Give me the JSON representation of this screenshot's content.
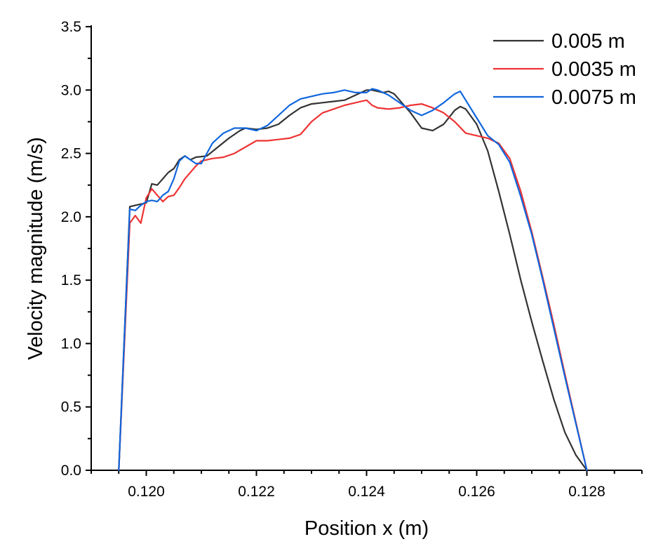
{
  "chart_data": {
    "type": "line",
    "title": "",
    "xlabel": "Position x (m)",
    "ylabel": "Velocity magnitude (m/s)",
    "xlim": [
      0.119,
      0.129
    ],
    "ylim": [
      0.0,
      3.5
    ],
    "x_ticks": [
      0.12,
      0.122,
      0.124,
      0.126,
      0.128
    ],
    "x_tick_labels": [
      "0.120",
      "0.122",
      "0.124",
      "0.126",
      "0.128"
    ],
    "y_ticks": [
      0.0,
      0.5,
      1.0,
      1.5,
      2.0,
      2.5,
      3.0,
      3.5
    ],
    "y_tick_labels": [
      "0.0",
      "0.5",
      "1.0",
      "1.5",
      "2.0",
      "2.5",
      "3.0",
      "3.5"
    ],
    "grid": false,
    "legend_position": "top-right",
    "series": [
      {
        "name": "0.005 m",
        "color": "#333333",
        "x": [
          0.1195,
          0.1197,
          0.1198,
          0.1199,
          0.12,
          0.1201,
          0.1202,
          0.1203,
          0.1204,
          0.1205,
          0.1206,
          0.1207,
          0.1208,
          0.1209,
          0.1211,
          0.1213,
          0.1215,
          0.1217,
          0.1218,
          0.122,
          0.1222,
          0.1224,
          0.1226,
          0.1228,
          0.123,
          0.1232,
          0.1234,
          0.1236,
          0.1238,
          0.124,
          0.1241,
          0.1242,
          0.1243,
          0.1244,
          0.1245,
          0.1246,
          0.1248,
          0.125,
          0.1252,
          0.1254,
          0.1256,
          0.1257,
          0.1258,
          0.126,
          0.1262,
          0.1264,
          0.1266,
          0.1268,
          0.127,
          0.1272,
          0.1274,
          0.1276,
          0.1278,
          0.128
        ],
        "values": [
          0.0,
          2.08,
          2.09,
          2.1,
          2.11,
          2.26,
          2.25,
          2.3,
          2.35,
          2.38,
          2.45,
          2.48,
          2.45,
          2.47,
          2.48,
          2.55,
          2.62,
          2.68,
          2.7,
          2.69,
          2.7,
          2.73,
          2.8,
          2.86,
          2.89,
          2.9,
          2.91,
          2.92,
          2.96,
          3.0,
          3.0,
          2.99,
          2.98,
          2.99,
          2.97,
          2.92,
          2.82,
          2.7,
          2.68,
          2.73,
          2.84,
          2.87,
          2.85,
          2.73,
          2.52,
          2.2,
          1.86,
          1.5,
          1.17,
          0.86,
          0.56,
          0.3,
          0.12,
          0.0
        ]
      },
      {
        "name": "0.0035 m",
        "color": "#ee3333",
        "x": [
          0.1195,
          0.1197,
          0.1198,
          0.1199,
          0.12,
          0.1201,
          0.1202,
          0.1203,
          0.1204,
          0.1205,
          0.1206,
          0.1207,
          0.1208,
          0.1209,
          0.121,
          0.1212,
          0.1214,
          0.1216,
          0.1218,
          0.122,
          0.1222,
          0.1224,
          0.1226,
          0.1228,
          0.123,
          0.1232,
          0.1234,
          0.1236,
          0.1238,
          0.124,
          0.1241,
          0.1242,
          0.1244,
          0.1246,
          0.1248,
          0.125,
          0.1252,
          0.1254,
          0.1256,
          0.1258,
          0.126,
          0.1262,
          0.1264,
          0.1266,
          0.1268,
          0.127,
          0.1272,
          0.1274,
          0.1276,
          0.1278,
          0.128
        ],
        "values": [
          0.0,
          1.95,
          2.01,
          1.95,
          2.15,
          2.22,
          2.17,
          2.12,
          2.16,
          2.17,
          2.23,
          2.3,
          2.35,
          2.4,
          2.44,
          2.46,
          2.47,
          2.5,
          2.55,
          2.6,
          2.6,
          2.61,
          2.62,
          2.65,
          2.75,
          2.82,
          2.85,
          2.88,
          2.9,
          2.92,
          2.88,
          2.86,
          2.85,
          2.86,
          2.88,
          2.89,
          2.86,
          2.82,
          2.75,
          2.66,
          2.64,
          2.62,
          2.58,
          2.46,
          2.2,
          1.88,
          1.52,
          1.15,
          0.76,
          0.38,
          0.0
        ]
      },
      {
        "name": "0.0075 m",
        "color": "#1166dd",
        "x": [
          0.1195,
          0.1197,
          0.1198,
          0.1199,
          0.12,
          0.1201,
          0.1202,
          0.1203,
          0.1204,
          0.1205,
          0.1206,
          0.1207,
          0.1208,
          0.1209,
          0.121,
          0.1212,
          0.1214,
          0.1216,
          0.1218,
          0.122,
          0.1222,
          0.1224,
          0.1226,
          0.1228,
          0.123,
          0.1232,
          0.1234,
          0.1236,
          0.1238,
          0.124,
          0.1241,
          0.1242,
          0.1244,
          0.1246,
          0.1248,
          0.125,
          0.1252,
          0.1254,
          0.1256,
          0.1257,
          0.1258,
          0.126,
          0.1262,
          0.1264,
          0.1266,
          0.1268,
          0.127,
          0.1272,
          0.1274,
          0.1276,
          0.1278,
          0.128
        ],
        "values": [
          0.0,
          2.06,
          2.05,
          2.09,
          2.12,
          2.13,
          2.12,
          2.17,
          2.2,
          2.3,
          2.44,
          2.48,
          2.45,
          2.42,
          2.42,
          2.58,
          2.66,
          2.7,
          2.7,
          2.68,
          2.72,
          2.8,
          2.88,
          2.93,
          2.95,
          2.97,
          2.98,
          3.0,
          2.98,
          2.98,
          3.01,
          3.0,
          2.96,
          2.9,
          2.84,
          2.8,
          2.84,
          2.9,
          2.97,
          2.99,
          2.92,
          2.78,
          2.64,
          2.57,
          2.43,
          2.16,
          1.86,
          1.5,
          1.12,
          0.74,
          0.37,
          0.0
        ]
      }
    ]
  }
}
